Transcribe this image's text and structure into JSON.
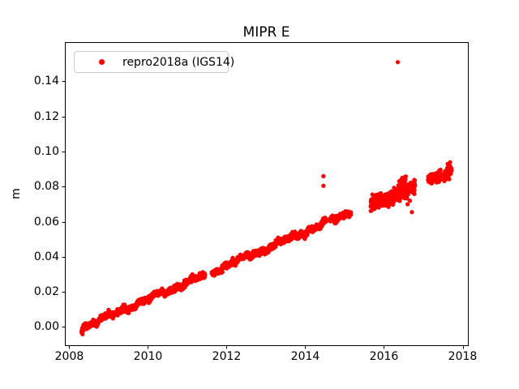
{
  "figure": {
    "background": "#ffffff",
    "accent_color": "#ff0000",
    "axis_color": "#000000"
  },
  "chart_data": {
    "type": "scatter",
    "title": "MIPR E",
    "xlabel": "",
    "ylabel": "m",
    "grid": false,
    "xlim": [
      2007.887,
      2018.134
    ],
    "ylim": [
      -0.0104,
      0.1624
    ],
    "xticks": [
      2008,
      2010,
      2012,
      2014,
      2016,
      2018
    ],
    "yticks": [
      "0.00",
      "0.02",
      "0.04",
      "0.06",
      "0.08",
      "0.10",
      "0.12",
      "0.14"
    ],
    "legend": {
      "label": "repro2018a (IGS14)",
      "location": "upper left",
      "marker_color": "#ff0000"
    },
    "series": [
      {
        "name": "repro2018a (IGS14)",
        "color": "#ff0000",
        "marker": "dot",
        "marker_radius_px": 2.6,
        "trend_m_per_yr": 0.00975,
        "segments": [
          {
            "t_start": 2008.31,
            "t_end": 2015.16,
            "v_start": -0.0005,
            "v_end": 0.0655,
            "noise": 0.0008,
            "wander": 0.0011,
            "samples_per_year": 365
          },
          {
            "t_start": 2015.66,
            "t_end": 2016.79,
            "v_start": 0.07,
            "v_end": 0.0795,
            "noise": 0.0018,
            "wander": 0.0006,
            "samples_per_year": 365
          },
          {
            "t_start": 2016.36,
            "t_end": 2016.56,
            "v_start": 0.08,
            "v_end": 0.0852,
            "noise": 0.0012,
            "wander": 0.0,
            "samples_per_year": 120
          },
          {
            "t_start": 2017.12,
            "t_end": 2017.45,
            "v_start": 0.084,
            "v_end": 0.0865,
            "noise": 0.0012,
            "wander": 0.0,
            "samples_per_year": 365
          },
          {
            "t_start": 2017.53,
            "t_end": 2017.72,
            "v_start": 0.0855,
            "v_end": 0.09,
            "noise": 0.0019,
            "wander": 0.0,
            "samples_per_year": 365
          }
        ],
        "gaps": [
          [
            2011.45,
            2011.62
          ],
          [
            2014.55,
            2014.63
          ]
        ],
        "outliers": [
          [
            2014.46,
            0.086
          ],
          [
            2014.46,
            0.0805
          ],
          [
            2016.35,
            0.151
          ],
          [
            2016.6,
            0.07
          ],
          [
            2016.66,
            0.072
          ],
          [
            2016.71,
            0.0655
          ],
          [
            2017.62,
            0.093
          ]
        ]
      }
    ]
  }
}
